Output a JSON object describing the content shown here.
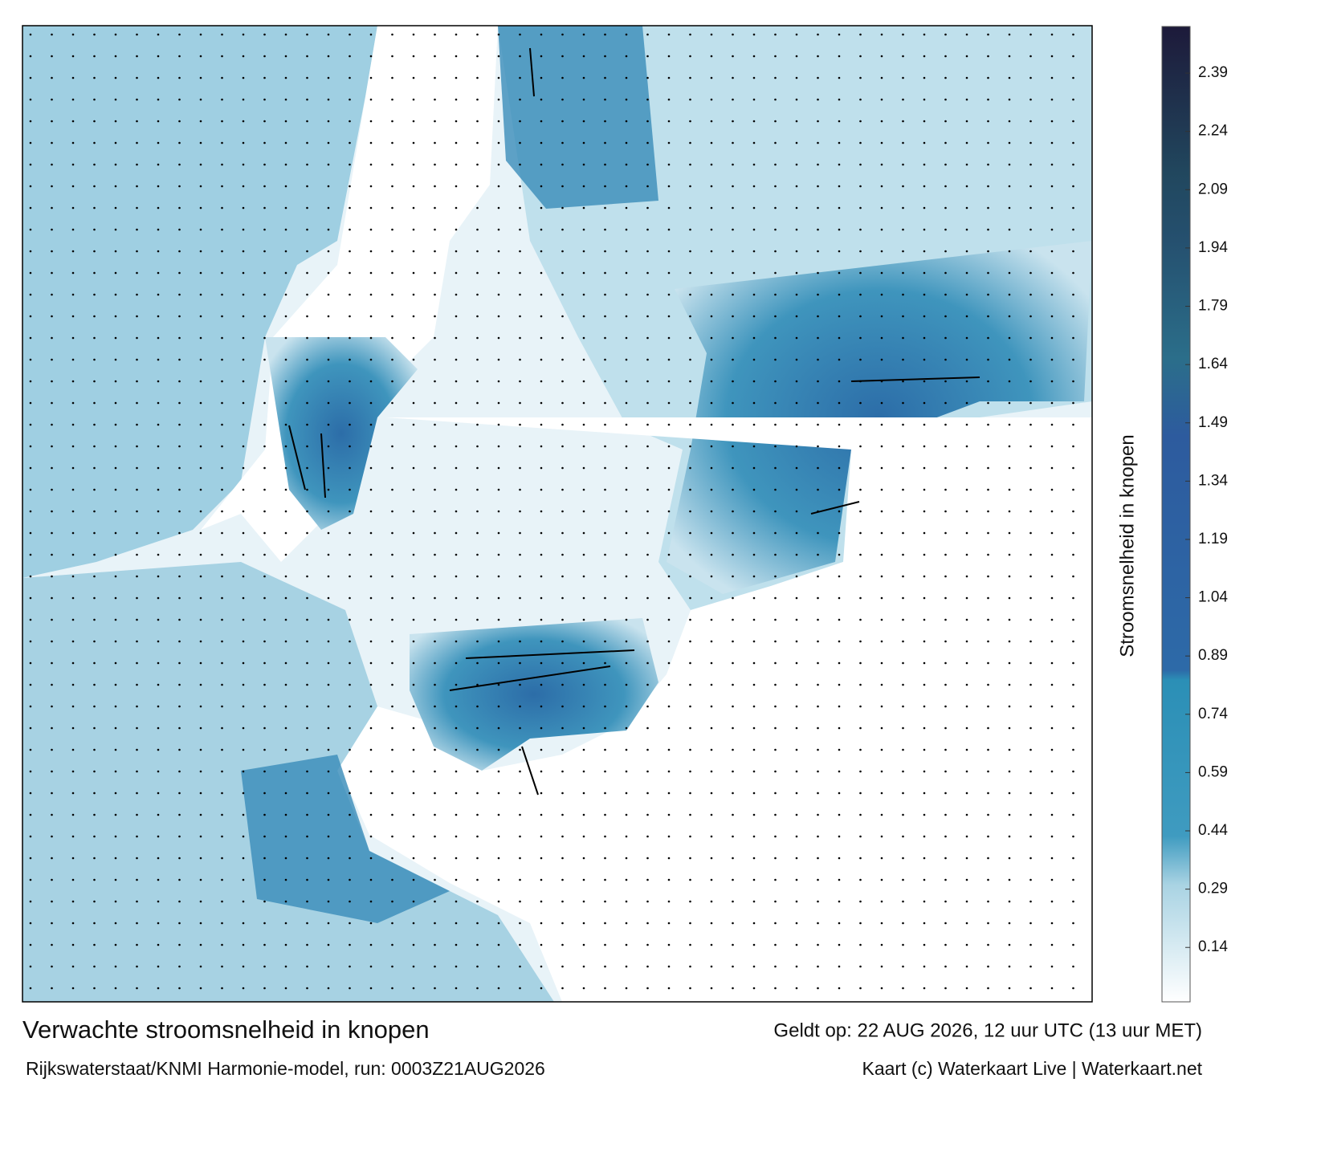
{
  "map": {
    "title": "Verwachte stroomsnelheid in knopen",
    "valid": "Geldt op: 22 AUG 2026, 12 uur UTC (13 uur MET)",
    "source": "Rijkswaterstaat/KNMI Harmonie-model, run: 0003Z21AUG2026",
    "credit": "Kaart (c) Waterkaart Live | Waterkaart.net"
  },
  "colorbar": {
    "label": "Stroomsnelheid in knopen",
    "lim": [
      0,
      2.51
    ],
    "ticks": [
      0.14,
      0.29,
      0.44,
      0.59,
      0.74,
      0.89,
      1.04,
      1.19,
      1.34,
      1.49,
      1.64,
      1.79,
      1.94,
      2.09,
      2.24,
      2.39
    ]
  }
}
